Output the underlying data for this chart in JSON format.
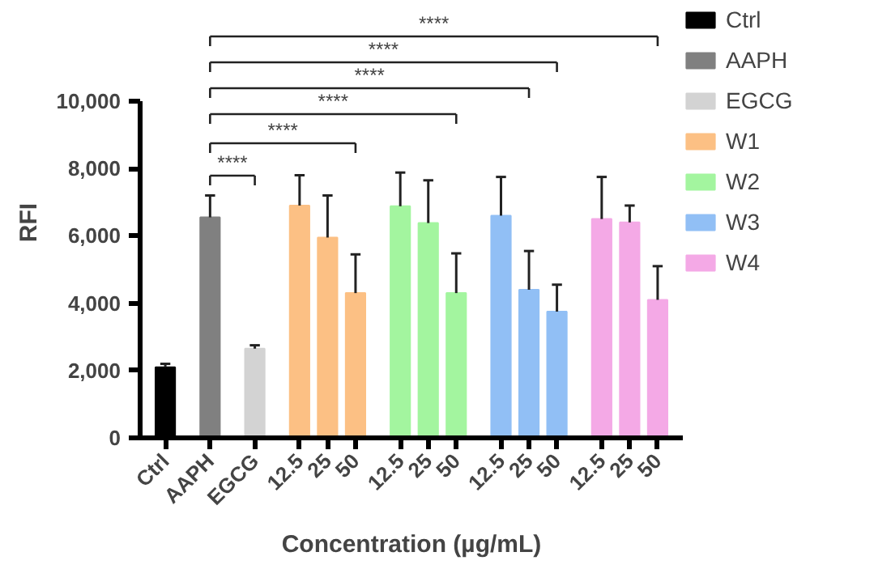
{
  "chart_data": {
    "type": "bar",
    "xlabel": "Concentration (µg/mL)",
    "ylabel": "RFI",
    "categories": [
      "Ctrl",
      "AAPH",
      "EGCG",
      "12.5",
      "25",
      "50",
      "12.5",
      "25",
      "50",
      "12.5",
      "25",
      "50",
      "12.5",
      "25",
      "50"
    ],
    "series": [
      {
        "name": "Ctrl",
        "color": "#000000",
        "values": [
          2100,
          null,
          null,
          null,
          null,
          null,
          null,
          null,
          null,
          null,
          null,
          null,
          null,
          null,
          null
        ],
        "errors": [
          [
            2100,
            2200
          ],
          null,
          null,
          null,
          null,
          null,
          null,
          null,
          null,
          null,
          null,
          null,
          null,
          null,
          null
        ]
      },
      {
        "name": "AAPH",
        "color": "#808080",
        "values": [
          null,
          6550,
          null,
          null,
          null,
          null,
          null,
          null,
          null,
          null,
          null,
          null,
          null,
          null,
          null
        ],
        "errors": [
          null,
          [
            6550,
            7200
          ],
          null,
          null,
          null,
          null,
          null,
          null,
          null,
          null,
          null,
          null,
          null,
          null,
          null
        ]
      },
      {
        "name": "EGCG",
        "color": "#d3d3d3",
        "values": [
          null,
          null,
          2650,
          null,
          null,
          null,
          null,
          null,
          null,
          null,
          null,
          null,
          null,
          null,
          null
        ],
        "errors": [
          null,
          null,
          [
            2650,
            2750
          ],
          null,
          null,
          null,
          null,
          null,
          null,
          null,
          null,
          null,
          null,
          null,
          null
        ]
      },
      {
        "name": "W1",
        "color": "#fcc084",
        "values": [
          null,
          null,
          null,
          6900,
          5950,
          4300,
          null,
          null,
          null,
          null,
          null,
          null,
          null,
          null,
          null
        ],
        "errors": [
          null,
          null,
          null,
          [
            6900,
            7800
          ],
          [
            5950,
            7200
          ],
          [
            4300,
            5450
          ],
          null,
          null,
          null,
          null,
          null,
          null,
          null,
          null,
          null
        ]
      },
      {
        "name": "W2",
        "color": "#a3f59f",
        "values": [
          null,
          null,
          null,
          null,
          null,
          null,
          6880,
          6380,
          4300,
          null,
          null,
          null,
          null,
          null,
          null
        ],
        "errors": [
          null,
          null,
          null,
          null,
          null,
          null,
          [
            6880,
            7880
          ],
          [
            6380,
            7650
          ],
          [
            4300,
            5480
          ],
          null,
          null,
          null,
          null,
          null,
          null
        ]
      },
      {
        "name": "W3",
        "color": "#91bff5",
        "values": [
          null,
          null,
          null,
          null,
          null,
          null,
          null,
          null,
          null,
          6600,
          4400,
          3750,
          null,
          null,
          null
        ],
        "errors": [
          null,
          null,
          null,
          null,
          null,
          null,
          null,
          null,
          null,
          [
            6600,
            7750
          ],
          [
            4400,
            5550
          ],
          [
            3750,
            4550
          ],
          null,
          null,
          null
        ]
      },
      {
        "name": "W4",
        "color": "#f4a9e6",
        "values": [
          null,
          null,
          null,
          null,
          null,
          null,
          null,
          null,
          null,
          null,
          null,
          null,
          6500,
          6400,
          4100
        ],
        "errors": [
          null,
          null,
          null,
          null,
          null,
          null,
          null,
          null,
          null,
          null,
          null,
          null,
          [
            6500,
            7750
          ],
          [
            6400,
            6900
          ],
          [
            4100,
            5100
          ]
        ]
      }
    ],
    "ylim": [
      0,
      10000
    ],
    "yticks": [
      0,
      {
        "value": 2000,
        "label": "2,000"
      },
      {
        "value": 4000,
        "label": "4,000"
      },
      {
        "value": 6000,
        "label": "6,000"
      },
      {
        "value": 8000,
        "label": "8,000"
      },
      {
        "value": 10000,
        "label": "10,000"
      }
    ],
    "annotations": [
      "****",
      "****",
      "****",
      "****",
      "****",
      "****"
    ],
    "legend": "right",
    "grid": false
  }
}
